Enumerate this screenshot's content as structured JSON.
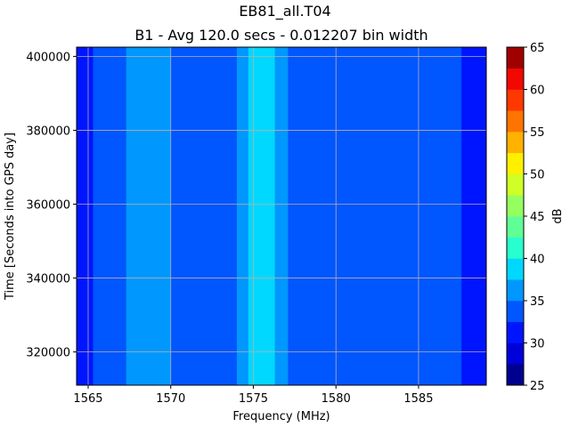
{
  "chart_data": {
    "type": "heatmap",
    "title": "EB81_all.T04",
    "subtitle": "B1 - Avg 120.0 secs - 0.012207 bin width",
    "xlabel": "Frequency (MHz)",
    "ylabel": "Time [Seconds into GPS day]",
    "colorbar_label": "dB",
    "xlim": [
      1564.3,
      1589.1
    ],
    "ylim": [
      311000,
      402500
    ],
    "grid": true,
    "x_ticks": [
      1565,
      1570,
      1575,
      1580,
      1585
    ],
    "x_tick_labels": [
      "1565",
      "1570",
      "1575",
      "1580",
      "1585"
    ],
    "y_ticks": [
      320000,
      340000,
      360000,
      380000,
      400000
    ],
    "y_tick_labels": [
      "320000",
      "340000",
      "360000",
      "380000",
      "400000"
    ],
    "colorbar_ticks": [
      25,
      30,
      35,
      40,
      45,
      50,
      55,
      60,
      65
    ],
    "colorbar_tick_labels": [
      "25",
      "30",
      "35",
      "40",
      "45",
      "50",
      "55",
      "60",
      "65"
    ],
    "color_levels": [
      {
        "from": 25.0,
        "to": 27.5,
        "color": "#00008f"
      },
      {
        "from": 27.5,
        "to": 30.0,
        "color": "#0000d8"
      },
      {
        "from": 30.0,
        "to": 32.5,
        "color": "#0015ff"
      },
      {
        "from": 32.5,
        "to": 35.0,
        "color": "#0056ff"
      },
      {
        "from": 35.0,
        "to": 37.5,
        "color": "#0097ff"
      },
      {
        "from": 37.5,
        "to": 40.0,
        "color": "#00d8ff"
      },
      {
        "from": 40.0,
        "to": 42.5,
        "color": "#27ffcf"
      },
      {
        "from": 42.5,
        "to": 45.0,
        "color": "#60ff96"
      },
      {
        "from": 45.0,
        "to": 47.5,
        "color": "#96ff60"
      },
      {
        "from": 47.5,
        "to": 50.0,
        "color": "#cfff27"
      },
      {
        "from": 50.0,
        "to": 52.5,
        "color": "#fff000"
      },
      {
        "from": 52.5,
        "to": 55.0,
        "color": "#ffb200"
      },
      {
        "from": 55.0,
        "to": 57.5,
        "color": "#ff7400"
      },
      {
        "from": 57.5,
        "to": 60.0,
        "color": "#ff3800"
      },
      {
        "from": 60.0,
        "to": 62.5,
        "color": "#f10800"
      },
      {
        "from": 62.5,
        "to": 65.0,
        "color": "#a10000"
      }
    ],
    "frequency_bands": [
      {
        "x0": 1564.3,
        "x1": 1565.3,
        "value": 31.0
      },
      {
        "x0": 1565.3,
        "x1": 1567.3,
        "value": 33.5
      },
      {
        "x0": 1567.3,
        "x1": 1570.0,
        "value": 36.0
      },
      {
        "x0": 1570.0,
        "x1": 1574.0,
        "value": 33.5
      },
      {
        "x0": 1574.0,
        "x1": 1574.7,
        "value": 36.0
      },
      {
        "x0": 1574.7,
        "x1": 1576.3,
        "value": 38.5
      },
      {
        "x0": 1576.3,
        "x1": 1577.1,
        "value": 36.0
      },
      {
        "x0": 1577.1,
        "x1": 1587.6,
        "value": 33.5
      },
      {
        "x0": 1587.6,
        "x1": 1589.1,
        "value": 31.0
      }
    ]
  }
}
